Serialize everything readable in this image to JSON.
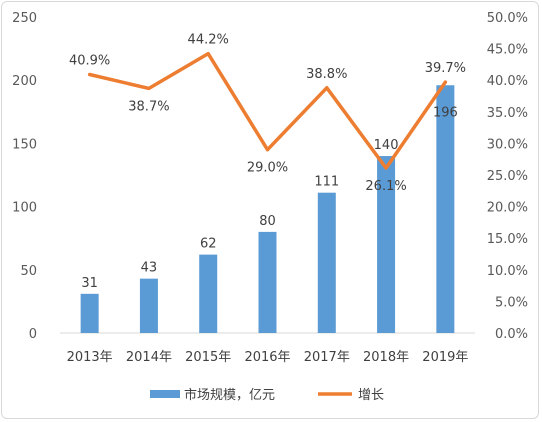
{
  "chart_data": {
    "type": "bar",
    "categories": [
      "2013年",
      "2014年",
      "2015年",
      "2016年",
      "2017年",
      "2018年",
      "2019年"
    ],
    "series": [
      {
        "name": "市场规模，亿元",
        "type": "bar",
        "axis": "left",
        "values": [
          31,
          43,
          62,
          80,
          111,
          140,
          196
        ],
        "labels": [
          "31",
          "43",
          "62",
          "80",
          "111",
          "140",
          "196"
        ],
        "color": "#5b9bd5"
      },
      {
        "name": "增长",
        "type": "line",
        "axis": "right",
        "values": [
          40.9,
          38.7,
          44.2,
          29.0,
          38.8,
          26.1,
          39.7
        ],
        "labels": [
          "40.9%",
          "38.7%",
          "44.2%",
          "29.0%",
          "38.8%",
          "26.1%",
          "39.7%"
        ],
        "color": "#ed7d31"
      }
    ],
    "y_left": {
      "lim": [
        0,
        250
      ],
      "ticks": [
        "0",
        "50",
        "100",
        "150",
        "200",
        "250"
      ]
    },
    "y_right": {
      "lim": [
        0,
        50
      ],
      "ticks": [
        "0.0%",
        "5.0%",
        "10.0%",
        "15.0%",
        "20.0%",
        "25.0%",
        "30.0%",
        "35.0%",
        "40.0%",
        "45.0%",
        "50.0%"
      ]
    },
    "grid": false,
    "legend": "bottom"
  }
}
